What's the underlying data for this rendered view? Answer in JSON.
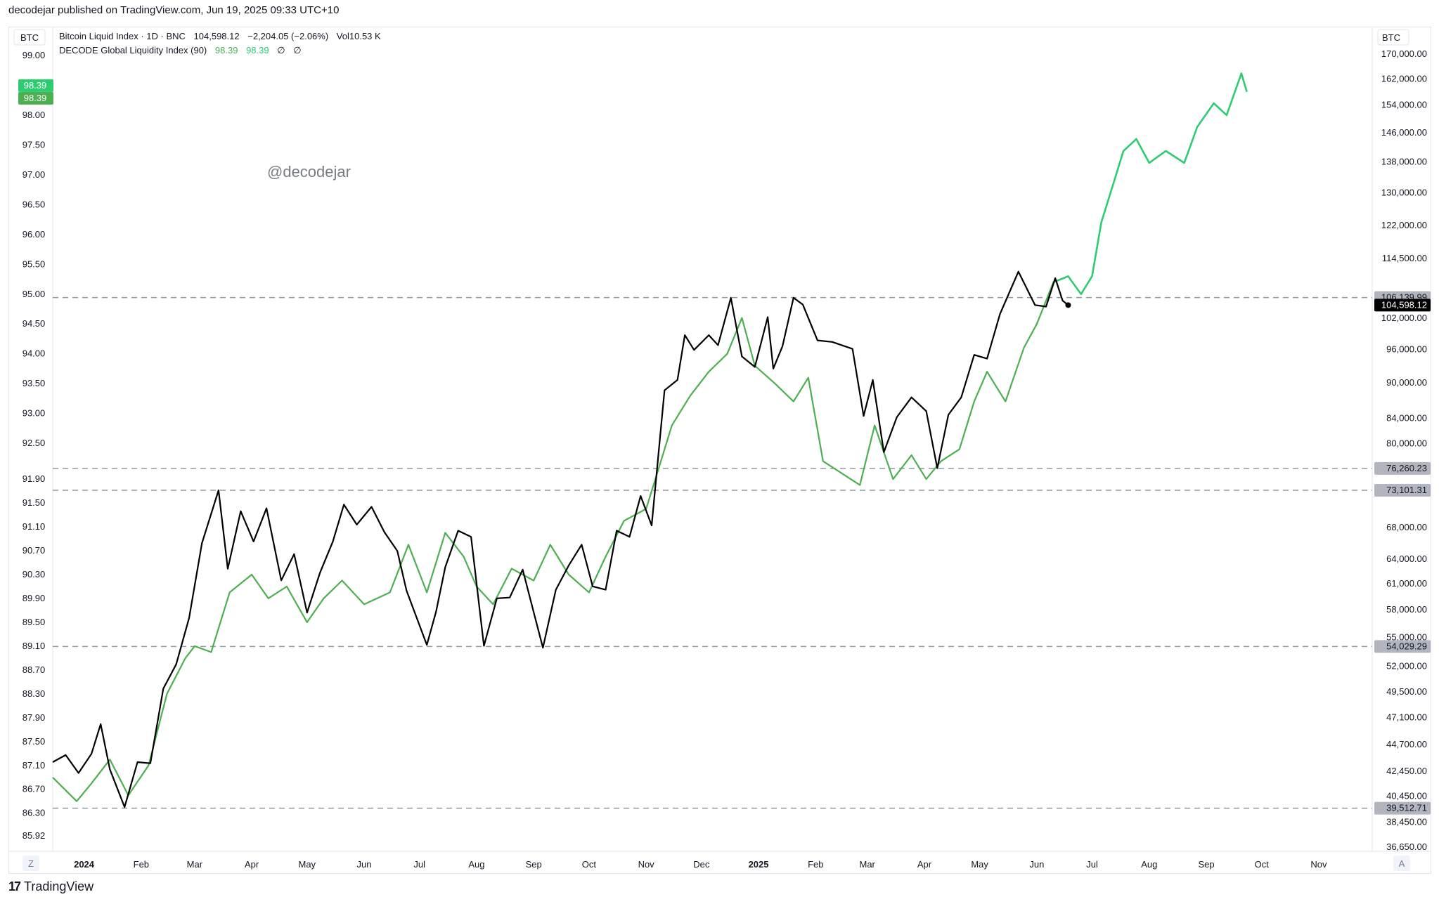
{
  "header": {
    "published": "decodejar published on TradingView.com, Jun 19, 2025 09:33 UTC+10"
  },
  "footer": {
    "logo_text": "TradingView"
  },
  "chart_data": {
    "type": "line",
    "left_unit": "BTC",
    "right_unit": "BTC",
    "legend": [
      {
        "label": "Bitcoin Liquid Index · 1D · BNC",
        "value": "104,598.12",
        "change": "−2,204.05 (−2.06%)",
        "volume": "Vol10.53 K"
      },
      {
        "label": "DECODE Global Liquidity Index (90)",
        "value1": "98.39",
        "value2": "98.39",
        "extra1": "∅",
        "extra2": "∅"
      }
    ],
    "watermark": "@decodejar",
    "left_axis_ticks": [
      "99.00",
      "98.00",
      "97.50",
      "97.00",
      "96.50",
      "96.00",
      "95.50",
      "95.00",
      "94.50",
      "94.00",
      "93.50",
      "93.00",
      "92.50",
      "91.90",
      "91.50",
      "91.10",
      "90.70",
      "90.30",
      "89.90",
      "89.50",
      "89.10",
      "88.70",
      "88.30",
      "87.90",
      "87.50",
      "87.10",
      "86.70",
      "86.30",
      "85.92"
    ],
    "left_axis_tick_values": [
      99.0,
      98.0,
      97.5,
      97.0,
      96.5,
      96.0,
      95.5,
      95.0,
      94.5,
      94.0,
      93.5,
      93.0,
      92.5,
      91.9,
      91.5,
      91.1,
      90.7,
      90.3,
      89.9,
      89.5,
      89.1,
      88.7,
      88.3,
      87.9,
      87.5,
      87.1,
      86.7,
      86.3,
      85.92
    ],
    "right_axis_ticks": [
      "170,000.00",
      "162,000.00",
      "154,000.00",
      "146,000.00",
      "138,000.00",
      "130,000.00",
      "122,000.00",
      "114,500.00",
      "102,000.00",
      "96,000.00",
      "90,000.00",
      "84,000.00",
      "80,000.00",
      "68,000.00",
      "64,000.00",
      "61,000.00",
      "58,000.00",
      "55,000.00",
      "52,000.00",
      "49,500.00",
      "47,100.00",
      "44,700.00",
      "42,450.00",
      "40,450.00",
      "38,450.00",
      "36,650.00"
    ],
    "right_axis_tick_values": [
      170000,
      162000,
      154000,
      146000,
      138000,
      130000,
      122000,
      114500,
      102000,
      96000,
      90000,
      84000,
      80000,
      68000,
      64000,
      61000,
      58000,
      55000,
      52000,
      49500,
      47100,
      44700,
      42450,
      40450,
      38450,
      36650
    ],
    "right_scale": "log",
    "x_ticks": [
      {
        "label": "2024",
        "bold": true
      },
      {
        "label": "Feb",
        "bold": false
      },
      {
        "label": "Mar",
        "bold": false
      },
      {
        "label": "Apr",
        "bold": false
      },
      {
        "label": "May",
        "bold": false
      },
      {
        "label": "Jun",
        "bold": false
      },
      {
        "label": "Jul",
        "bold": false
      },
      {
        "label": "Aug",
        "bold": false
      },
      {
        "label": "Sep",
        "bold": false
      },
      {
        "label": "Oct",
        "bold": false
      },
      {
        "label": "Nov",
        "bold": false
      },
      {
        "label": "Dec",
        "bold": false
      },
      {
        "label": "2025",
        "bold": true
      },
      {
        "label": "Feb",
        "bold": false
      },
      {
        "label": "Mar",
        "bold": false
      },
      {
        "label": "Apr",
        "bold": false
      },
      {
        "label": "May",
        "bold": false
      },
      {
        "label": "Jun",
        "bold": false
      },
      {
        "label": "Jul",
        "bold": false
      },
      {
        "label": "Aug",
        "bold": false
      },
      {
        "label": "Sep",
        "bold": false
      },
      {
        "label": "Oct",
        "bold": false
      },
      {
        "label": "Nov",
        "bold": false
      }
    ],
    "x_range": [
      "2023-12-15",
      "2025-11-30"
    ],
    "x_tick_dates": [
      "2024-01-01",
      "2024-02-01",
      "2024-03-01",
      "2024-04-01",
      "2024-05-01",
      "2024-06-01",
      "2024-07-01",
      "2024-08-01",
      "2024-09-01",
      "2024-10-01",
      "2024-11-01",
      "2024-12-01",
      "2025-01-01",
      "2025-02-01",
      "2025-03-01",
      "2025-04-01",
      "2025-05-01",
      "2025-06-01",
      "2025-07-01",
      "2025-08-01",
      "2025-09-01",
      "2025-10-01",
      "2025-11-01"
    ],
    "horizontal_levels": [
      {
        "label": "106,139.99",
        "value": 106139.99
      },
      {
        "label": "76,260.23",
        "value": 76260.23
      },
      {
        "label": "73,101.31",
        "value": 73101.31
      },
      {
        "label": "54,029.29",
        "value": 54029.29
      },
      {
        "label": "39,512.71",
        "value": 39512.71
      }
    ],
    "left_badges": [
      "98.39",
      "98.39"
    ],
    "last_price_badge": "104,598.12",
    "axis_buttons": {
      "left": "Z",
      "right": "A"
    },
    "series": [
      {
        "name": "Bitcoin Liquid Index",
        "axis": "right",
        "color": "#000000",
        "points": [
          [
            "2023-12-15",
            43200
          ],
          [
            "2023-12-22",
            43800
          ],
          [
            "2023-12-29",
            42300
          ],
          [
            "2024-01-05",
            43900
          ],
          [
            "2024-01-10",
            46500
          ],
          [
            "2024-01-15",
            42600
          ],
          [
            "2024-01-23",
            39600
          ],
          [
            "2024-01-30",
            43200
          ],
          [
            "2024-02-06",
            43100
          ],
          [
            "2024-02-13",
            49800
          ],
          [
            "2024-02-20",
            52200
          ],
          [
            "2024-02-27",
            57100
          ],
          [
            "2024-03-05",
            66000
          ],
          [
            "2024-03-14",
            73100
          ],
          [
            "2024-03-19",
            62800
          ],
          [
            "2024-03-26",
            70200
          ],
          [
            "2024-04-02",
            66200
          ],
          [
            "2024-04-09",
            70600
          ],
          [
            "2024-04-17",
            61400
          ],
          [
            "2024-04-24",
            64600
          ],
          [
            "2024-05-01",
            57700
          ],
          [
            "2024-05-08",
            62300
          ],
          [
            "2024-05-15",
            66200
          ],
          [
            "2024-05-21",
            71100
          ],
          [
            "2024-05-28",
            68400
          ],
          [
            "2024-06-05",
            70800
          ],
          [
            "2024-06-12",
            67400
          ],
          [
            "2024-06-19",
            65000
          ],
          [
            "2024-06-24",
            60200
          ],
          [
            "2024-07-05",
            54200
          ],
          [
            "2024-07-10",
            57800
          ],
          [
            "2024-07-15",
            63000
          ],
          [
            "2024-07-22",
            67600
          ],
          [
            "2024-07-29",
            66800
          ],
          [
            "2024-08-05",
            54100
          ],
          [
            "2024-08-12",
            59300
          ],
          [
            "2024-08-19",
            59400
          ],
          [
            "2024-08-26",
            62700
          ],
          [
            "2024-09-06",
            53900
          ],
          [
            "2024-09-13",
            60300
          ],
          [
            "2024-09-20",
            63200
          ],
          [
            "2024-09-27",
            65800
          ],
          [
            "2024-10-03",
            60700
          ],
          [
            "2024-10-10",
            60300
          ],
          [
            "2024-10-16",
            67600
          ],
          [
            "2024-10-23",
            66800
          ],
          [
            "2024-10-29",
            72300
          ],
          [
            "2024-11-04",
            68300
          ],
          [
            "2024-11-11",
            88700
          ],
          [
            "2024-11-18",
            90500
          ],
          [
            "2024-11-22",
            98700
          ],
          [
            "2024-11-27",
            95900
          ],
          [
            "2024-12-05",
            98700
          ],
          [
            "2024-12-10",
            96800
          ],
          [
            "2024-12-17",
            106100
          ],
          [
            "2024-12-23",
            94700
          ],
          [
            "2024-12-30",
            92800
          ],
          [
            "2025-01-06",
            102200
          ],
          [
            "2025-01-09",
            92500
          ],
          [
            "2025-01-14",
            96600
          ],
          [
            "2025-01-20",
            106100
          ],
          [
            "2025-01-25",
            104700
          ],
          [
            "2025-02-02",
            97700
          ],
          [
            "2025-02-10",
            97400
          ],
          [
            "2025-02-21",
            96100
          ],
          [
            "2025-02-27",
            84400
          ],
          [
            "2025-03-04",
            90500
          ],
          [
            "2025-03-10",
            78700
          ],
          [
            "2025-03-17",
            84200
          ],
          [
            "2025-03-25",
            87500
          ],
          [
            "2025-04-02",
            85200
          ],
          [
            "2025-04-08",
            76300
          ],
          [
            "2025-04-14",
            84600
          ],
          [
            "2025-04-21",
            87500
          ],
          [
            "2025-04-28",
            95000
          ],
          [
            "2025-05-05",
            94300
          ],
          [
            "2025-05-12",
            102800
          ],
          [
            "2025-05-22",
            111600
          ],
          [
            "2025-05-31",
            104600
          ],
          [
            "2025-06-06",
            104300
          ],
          [
            "2025-06-11",
            110200
          ],
          [
            "2025-06-15",
            105500
          ],
          [
            "2025-06-18",
            104598.12
          ]
        ]
      },
      {
        "name": "DECODE Global Liquidity Index (90)",
        "axis": "left",
        "color": "#4caf50",
        "future_color": "#2ecc71",
        "points": [
          [
            "2023-12-15",
            86.9
          ],
          [
            "2023-12-28",
            86.5
          ],
          [
            "2024-01-05",
            86.8
          ],
          [
            "2024-01-15",
            87.2
          ],
          [
            "2024-01-25",
            86.6
          ],
          [
            "2024-02-05",
            87.1
          ],
          [
            "2024-02-15",
            88.3
          ],
          [
            "2024-02-25",
            88.9
          ],
          [
            "2024-03-01",
            89.1
          ],
          [
            "2024-03-10",
            89.0
          ],
          [
            "2024-03-20",
            90.0
          ],
          [
            "2024-04-01",
            90.3
          ],
          [
            "2024-04-10",
            89.9
          ],
          [
            "2024-04-20",
            90.1
          ],
          [
            "2024-05-01",
            89.5
          ],
          [
            "2024-05-10",
            89.9
          ],
          [
            "2024-05-20",
            90.2
          ],
          [
            "2024-06-01",
            89.8
          ],
          [
            "2024-06-15",
            90.0
          ],
          [
            "2024-06-25",
            90.8
          ],
          [
            "2024-07-05",
            90.0
          ],
          [
            "2024-07-15",
            91.0
          ],
          [
            "2024-07-25",
            90.6
          ],
          [
            "2024-08-01",
            90.1
          ],
          [
            "2024-08-10",
            89.8
          ],
          [
            "2024-08-20",
            90.4
          ],
          [
            "2024-09-01",
            90.2
          ],
          [
            "2024-09-10",
            90.8
          ],
          [
            "2024-09-20",
            90.3
          ],
          [
            "2024-10-01",
            90.0
          ],
          [
            "2024-10-10",
            90.6
          ],
          [
            "2024-10-20",
            91.2
          ],
          [
            "2024-11-01",
            91.4
          ],
          [
            "2024-11-07",
            92.0
          ],
          [
            "2024-11-15",
            92.8
          ],
          [
            "2024-11-25",
            93.3
          ],
          [
            "2024-12-05",
            93.7
          ],
          [
            "2024-12-15",
            94.0
          ],
          [
            "2024-12-23",
            94.6
          ],
          [
            "2024-12-30",
            93.8
          ],
          [
            "2025-01-10",
            93.5
          ],
          [
            "2025-01-20",
            93.2
          ],
          [
            "2025-01-28",
            93.6
          ],
          [
            "2025-02-05",
            92.2
          ],
          [
            "2025-02-15",
            92.0
          ],
          [
            "2025-02-25",
            91.8
          ],
          [
            "2025-03-05",
            92.8
          ],
          [
            "2025-03-15",
            91.9
          ],
          [
            "2025-03-25",
            92.3
          ],
          [
            "2025-04-02",
            91.9
          ],
          [
            "2025-04-10",
            92.2
          ],
          [
            "2025-04-20",
            92.4
          ],
          [
            "2025-04-28",
            93.2
          ],
          [
            "2025-05-05",
            93.7
          ],
          [
            "2025-05-15",
            93.2
          ],
          [
            "2025-05-25",
            94.1
          ],
          [
            "2025-06-01",
            94.5
          ],
          [
            "2025-06-10",
            95.2
          ],
          [
            "2025-06-18",
            95.3
          ],
          [
            "2025-06-25",
            95.0
          ],
          [
            "2025-07-01",
            95.3
          ],
          [
            "2025-07-06",
            96.2
          ],
          [
            "2025-07-12",
            96.8
          ],
          [
            "2025-07-18",
            97.4
          ],
          [
            "2025-07-25",
            97.6
          ],
          [
            "2025-08-01",
            97.2
          ],
          [
            "2025-08-10",
            97.4
          ],
          [
            "2025-08-20",
            97.2
          ],
          [
            "2025-08-27",
            97.8
          ],
          [
            "2025-09-05",
            98.2
          ],
          [
            "2025-09-12",
            98.0
          ],
          [
            "2025-09-20",
            98.7
          ],
          [
            "2025-09-23",
            98.39
          ]
        ]
      }
    ]
  }
}
